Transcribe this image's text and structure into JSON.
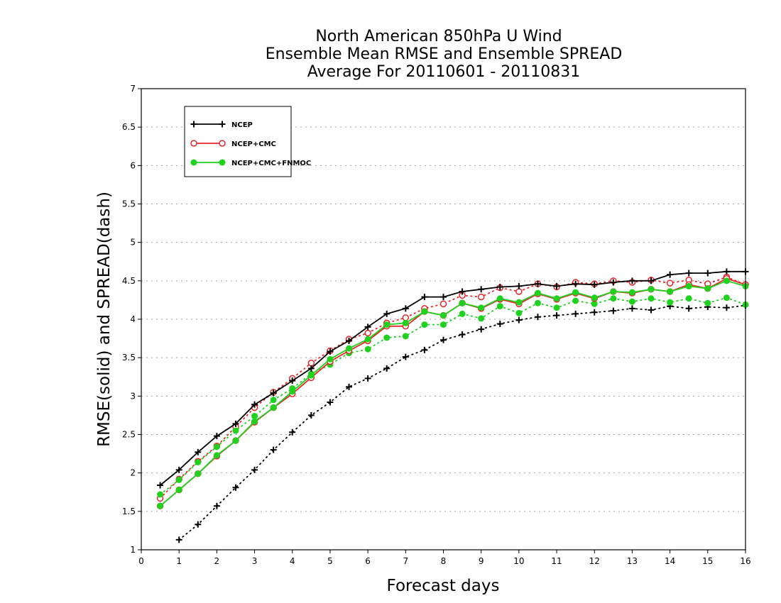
{
  "chart_data": {
    "type": "line",
    "title": [
      "North American 850hPa U Wind",
      "Ensemble Mean RMSE and Ensemble SPREAD",
      "Average For 20110601 - 20110831"
    ],
    "xlabel": "Forecast days",
    "ylabel": "RMSE(solid) and SPREAD(dash)",
    "xlim": [
      0,
      16
    ],
    "ylim": [
      1,
      7
    ],
    "xticks": [
      0,
      1,
      2,
      3,
      4,
      5,
      6,
      7,
      8,
      9,
      10,
      11,
      12,
      13,
      14,
      15,
      16
    ],
    "xtick_labels": [
      "0",
      "1",
      "2",
      "3",
      "4",
      "5",
      "6",
      "7",
      "8",
      "9",
      "10",
      "11",
      "12",
      "13",
      "14",
      "15",
      "16"
    ],
    "yticks": [
      1,
      1.5,
      2,
      2.5,
      3,
      3.5,
      4,
      4.5,
      5,
      5.5,
      6,
      6.5,
      7
    ],
    "ytick_labels": [
      "1",
      "1.5",
      "2",
      "2.5",
      "3",
      "3.5",
      "4",
      "4.5",
      "5",
      "5.5",
      "6",
      "6.5",
      "7"
    ],
    "grid": true,
    "legend_position": "top-left",
    "x": [
      0.5,
      1,
      1.5,
      2,
      2.5,
      3,
      3.5,
      4,
      4.5,
      5,
      5.5,
      6,
      6.5,
      7,
      7.5,
      8,
      8.5,
      9,
      9.5,
      10,
      10.5,
      11,
      11.5,
      12,
      12.5,
      13,
      13.5,
      14,
      14.5,
      15,
      15.5,
      16
    ],
    "series": [
      {
        "name": "NCEP",
        "color": "#000000",
        "marker": "plus",
        "rmse": [
          1.84,
          2.04,
          2.27,
          2.48,
          2.64,
          2.89,
          3.04,
          3.2,
          3.36,
          3.58,
          3.72,
          3.9,
          4.07,
          4.14,
          4.29,
          4.29,
          4.36,
          4.39,
          4.42,
          4.43,
          4.46,
          4.43,
          4.46,
          4.45,
          4.48,
          4.5,
          4.5,
          4.58,
          4.6,
          4.6,
          4.62,
          4.62
        ],
        "spread": [
          null,
          1.13,
          1.33,
          1.57,
          1.81,
          2.04,
          2.3,
          2.53,
          2.75,
          2.92,
          3.12,
          3.23,
          3.36,
          3.51,
          3.6,
          3.73,
          3.8,
          3.87,
          3.94,
          3.99,
          4.03,
          4.05,
          4.07,
          4.09,
          4.11,
          4.14,
          4.12,
          4.17,
          4.14,
          4.16,
          4.15,
          4.18
        ]
      },
      {
        "name": "NCEP+CMC",
        "color": "#e8262b",
        "marker": "open-circle",
        "rmse": [
          1.57,
          1.78,
          1.99,
          2.22,
          2.42,
          2.66,
          2.85,
          3.03,
          3.24,
          3.45,
          3.59,
          3.72,
          3.91,
          3.91,
          4.1,
          4.05,
          4.21,
          4.14,
          4.26,
          4.2,
          4.33,
          4.26,
          4.34,
          4.27,
          4.36,
          4.34,
          4.39,
          4.36,
          4.45,
          4.4,
          4.53,
          4.45
        ],
        "spread": [
          1.67,
          1.92,
          2.15,
          2.35,
          2.6,
          2.85,
          3.05,
          3.23,
          3.43,
          3.59,
          3.74,
          3.82,
          3.95,
          4.02,
          4.14,
          4.2,
          4.31,
          4.29,
          4.41,
          4.36,
          4.46,
          4.42,
          4.48,
          4.46,
          4.5,
          4.48,
          4.51,
          4.47,
          4.51,
          4.46,
          4.55,
          4.45
        ]
      },
      {
        "name": "NCEP+CMC+FNMOC",
        "color": "#1ed21e",
        "marker": "filled-circle",
        "rmse": [
          1.57,
          1.78,
          1.99,
          2.23,
          2.42,
          2.67,
          2.85,
          3.06,
          3.27,
          3.48,
          3.62,
          3.74,
          3.93,
          3.95,
          4.1,
          4.05,
          4.21,
          4.15,
          4.27,
          4.22,
          4.34,
          4.27,
          4.35,
          4.28,
          4.36,
          4.35,
          4.39,
          4.36,
          4.43,
          4.4,
          4.5,
          4.43
        ],
        "spread": [
          1.72,
          1.91,
          2.14,
          2.34,
          2.55,
          2.74,
          2.95,
          3.1,
          3.29,
          3.41,
          3.56,
          3.61,
          3.76,
          3.78,
          3.93,
          3.93,
          4.07,
          4.01,
          4.17,
          4.08,
          4.21,
          4.15,
          4.24,
          4.2,
          4.27,
          4.23,
          4.27,
          4.22,
          4.27,
          4.21,
          4.28,
          4.19
        ]
      }
    ]
  }
}
